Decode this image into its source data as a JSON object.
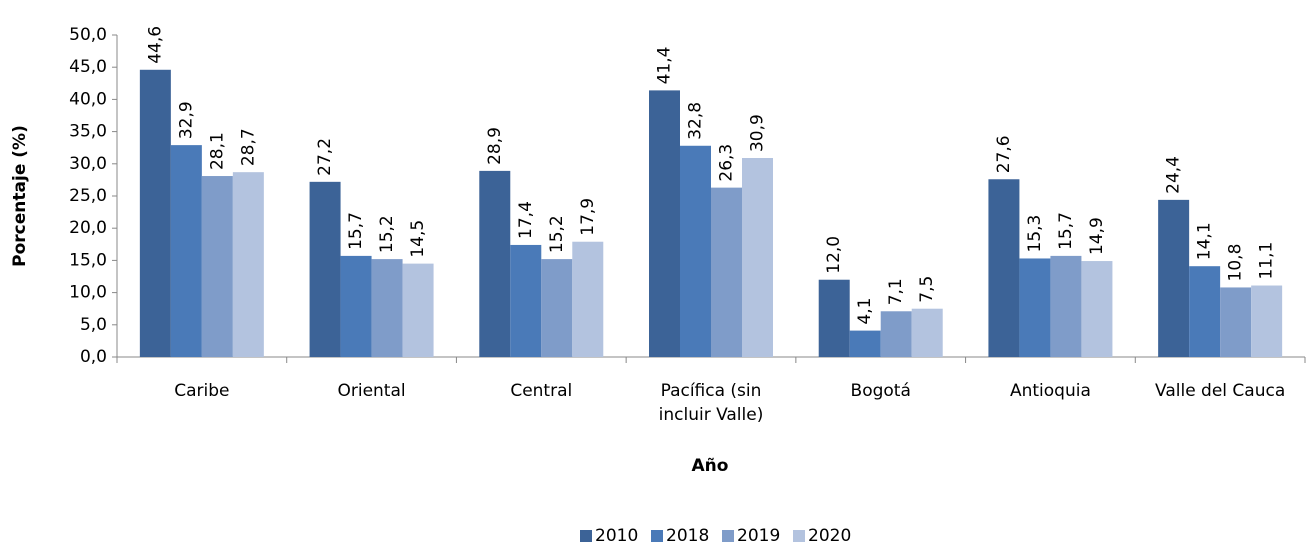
{
  "chart_data": {
    "type": "bar",
    "x_label": "Año",
    "y_label": "Porcentaje (%)",
    "categories": [
      "Caribe",
      "Oriental",
      "Central",
      "Pacífica (sin incluir Valle)",
      "Bogotá",
      "Antioquia",
      "Valle del Cauca"
    ],
    "series": [
      {
        "name": "2010",
        "color": "#3c6397",
        "values": [
          44.6,
          27.2,
          28.9,
          41.4,
          12.0,
          27.6,
          24.4
        ],
        "value_labels": [
          "44,6",
          "27,2",
          "28,9",
          "41,4",
          "12,0",
          "27,6",
          "24,4"
        ]
      },
      {
        "name": "2018",
        "color": "#4a7ab8",
        "values": [
          32.9,
          15.7,
          17.4,
          32.8,
          4.1,
          15.3,
          14.1
        ],
        "value_labels": [
          "32,9",
          "15,7",
          "17,4",
          "32,8",
          "4,1",
          "15,3",
          "14,1"
        ]
      },
      {
        "name": "2019",
        "color": "#7f9cc9",
        "values": [
          28.1,
          15.2,
          15.2,
          26.3,
          7.1,
          15.7,
          10.8
        ],
        "value_labels": [
          "28,1",
          "15,2",
          "15,2",
          "26,3",
          "7,1",
          "15,7",
          "10,8"
        ]
      },
      {
        "name": "2020",
        "color": "#b3c3df",
        "values": [
          28.7,
          14.5,
          17.9,
          30.9,
          7.5,
          14.9,
          11.1
        ],
        "value_labels": [
          "28,7",
          "14,5",
          "17,9",
          "30,9",
          "7,5",
          "14,9",
          "11,1"
        ]
      }
    ],
    "ylim": [
      0,
      50
    ],
    "yticks": [
      {
        "value": 0,
        "label": "0,0"
      },
      {
        "value": 5,
        "label": "5,0"
      },
      {
        "value": 10,
        "label": "10,0"
      },
      {
        "value": 15,
        "label": "15,0"
      },
      {
        "value": 20,
        "label": "20,0"
      },
      {
        "value": 25,
        "label": "25,0"
      },
      {
        "value": 30,
        "label": "30,0"
      },
      {
        "value": 35,
        "label": "35,0"
      },
      {
        "value": 40,
        "label": "40,0"
      },
      {
        "value": 45,
        "label": "45,0"
      },
      {
        "value": 50,
        "label": "50,0"
      }
    ],
    "grid": false,
    "legend": "bottom"
  }
}
